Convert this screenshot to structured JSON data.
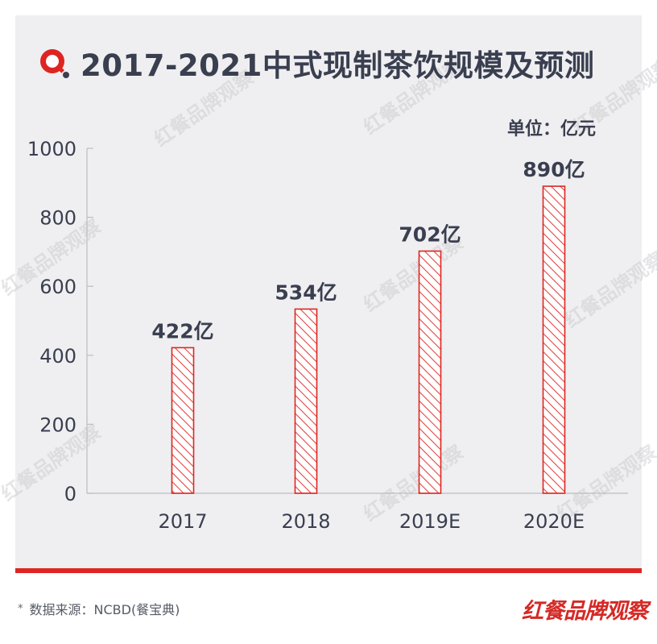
{
  "header": {
    "title": "2017-2021中式现制茶饮规模及预测",
    "unit": "单位：亿元"
  },
  "footer": {
    "source": "数据来源：NCBD(餐宝典)",
    "star": "*",
    "brand": "红餐品牌观察"
  },
  "watermark_text": "红餐品牌观察",
  "colors": {
    "background": "#efeff1",
    "bar_stroke": "#de2521",
    "text": "#3a3f50",
    "accent": "#de2521"
  },
  "chart_data": {
    "type": "bar",
    "title": "2017-2021中式现制茶饮规模及预测",
    "unit": "单位：亿元",
    "categories": [
      "2017",
      "2018",
      "2019E",
      "2020E"
    ],
    "values": [
      422,
      534,
      702,
      890
    ],
    "data_labels": [
      "422亿",
      "534亿",
      "702亿",
      "890亿"
    ],
    "ylim": [
      0,
      1000
    ],
    "yticks": [
      0,
      200,
      400,
      600,
      800,
      1000
    ],
    "grid": false,
    "bar_fill": "hatched"
  }
}
